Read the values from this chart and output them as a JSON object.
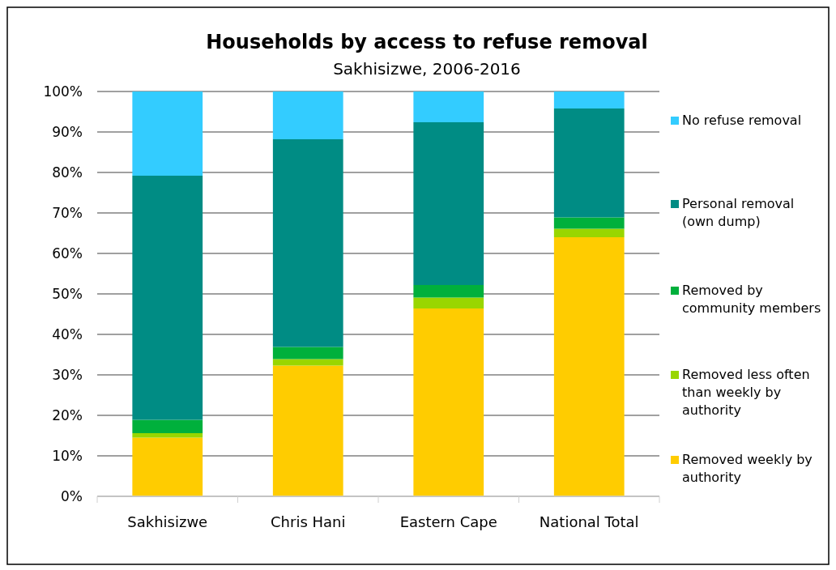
{
  "chart_data": {
    "type": "bar",
    "title": "Households by access to refuse removal",
    "subtitle": "Sakhisizwe, 2006-2016",
    "categories": [
      "Sakhisizwe",
      "Chris Hani",
      "Eastern Cape",
      "National Total"
    ],
    "stacked": true,
    "ylim": [
      0,
      100
    ],
    "yticks": [
      {
        "value": 0,
        "label": "0%"
      },
      {
        "value": 10,
        "label": "10%"
      },
      {
        "value": 20,
        "label": "20%"
      },
      {
        "value": 30,
        "label": "30%"
      },
      {
        "value": 40,
        "label": "40%"
      },
      {
        "value": 50,
        "label": "50%"
      },
      {
        "value": 60,
        "label": "60%"
      },
      {
        "value": 70,
        "label": "70%"
      },
      {
        "value": 80,
        "label": "80%"
      },
      {
        "value": 90,
        "label": "90%"
      },
      {
        "value": 100,
        "label": "100%"
      }
    ],
    "grid": "y",
    "legend": "right",
    "series": [
      {
        "name": "Removed weekly by authority",
        "color": "#ffcc00",
        "values": [
          14.5,
          32.3,
          46.4,
          64.0
        ]
      },
      {
        "name": "Removed less often than weekly by authority",
        "color": "#99d600",
        "values": [
          1.1,
          1.6,
          2.7,
          2.1
        ]
      },
      {
        "name": "Removed by community members",
        "color": "#00b03c",
        "values": [
          3.3,
          3.0,
          3.1,
          2.8
        ]
      },
      {
        "name": "Personal removal (own dump)",
        "color": "#008c84",
        "values": [
          60.3,
          51.3,
          40.2,
          26.9
        ]
      },
      {
        "name": "No refuse removal",
        "color": "#33ccff",
        "values": [
          20.8,
          11.8,
          7.6,
          4.2
        ]
      }
    ]
  }
}
